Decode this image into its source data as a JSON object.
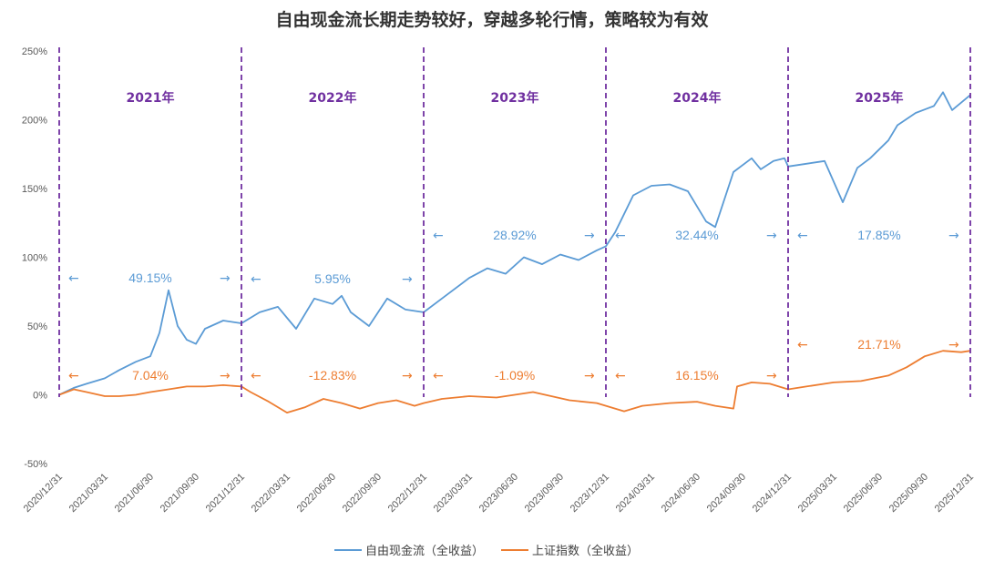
{
  "chart_data": {
    "type": "line",
    "title": "自由现金流长期走势较好，穿越多轮行情，策略较为有效",
    "y_ticks": [
      "250%",
      "200%",
      "150%",
      "100%",
      "50%",
      "0%",
      "-50%"
    ],
    "ylim": [
      -50,
      250
    ],
    "x_ticks": [
      "2020/12/31",
      "2021/03/31",
      "2021/06/30",
      "2021/09/30",
      "2021/12/31",
      "2022/03/31",
      "2022/06/30",
      "2022/09/30",
      "2022/12/31",
      "2023/03/31",
      "2023/06/30",
      "2023/09/30",
      "2023/12/31",
      "2024/03/31",
      "2024/06/30",
      "2024/09/30",
      "2024/12/31",
      "2025/03/31",
      "2025/06/30",
      "2025/09/30",
      "2025/12/31"
    ],
    "year_labels": [
      "2021年",
      "2022年",
      "2023年",
      "2024年",
      "2025年"
    ],
    "dividers": [
      "2020/12/31",
      "2021/12/31",
      "2022/12/31",
      "2023/12/31",
      "2024/12/31",
      "2025/12/31"
    ],
    "annual_returns": {
      "fcf": [
        "49.15%",
        "5.95%",
        "28.92%",
        "32.44%",
        "17.85%"
      ],
      "sse": [
        "7.04%",
        "-12.83%",
        "-1.09%",
        "16.15%",
        "21.71%"
      ]
    },
    "arrows": {
      "left": "←",
      "right": "→"
    },
    "legend_position": "bottom",
    "series": [
      {
        "name": "自由现金流（全收益）",
        "color": "#5b9bd5",
        "x": [
          0,
          0.08,
          0.15,
          0.25,
          0.33,
          0.42,
          0.5,
          0.55,
          0.6,
          0.65,
          0.7,
          0.75,
          0.8,
          0.9,
          1.0,
          1.1,
          1.2,
          1.3,
          1.4,
          1.5,
          1.55,
          1.6,
          1.7,
          1.75,
          1.8,
          1.9,
          2.0,
          2.1,
          2.25,
          2.35,
          2.45,
          2.55,
          2.65,
          2.75,
          2.85,
          2.95,
          3.0,
          3.05,
          3.08,
          3.15,
          3.25,
          3.35,
          3.45,
          3.55,
          3.6,
          3.7,
          3.8,
          3.85,
          3.92,
          3.98,
          4.0,
          4.1,
          4.2,
          4.3,
          4.38,
          4.45,
          4.55,
          4.6,
          4.7,
          4.8,
          4.85,
          4.9,
          5.0
        ],
        "y": [
          0,
          5,
          8,
          12,
          18,
          24,
          28,
          45,
          76,
          50,
          40,
          37,
          48,
          54,
          52,
          60,
          64,
          48,
          70,
          66,
          72,
          60,
          50,
          60,
          70,
          62,
          60,
          70,
          85,
          92,
          88,
          100,
          95,
          102,
          98,
          105,
          108,
          118,
          126,
          145,
          152,
          153,
          148,
          126,
          122,
          162,
          172,
          164,
          170,
          172,
          166,
          168,
          170,
          140,
          165,
          172,
          185,
          196,
          205,
          210,
          220,
          207,
          218
        ]
      },
      {
        "name": "上证指数（全收益）",
        "color": "#ed7d31",
        "x": [
          0,
          0.08,
          0.15,
          0.25,
          0.33,
          0.42,
          0.5,
          0.6,
          0.7,
          0.8,
          0.9,
          1.0,
          1.05,
          1.15,
          1.25,
          1.35,
          1.45,
          1.55,
          1.65,
          1.75,
          1.85,
          1.95,
          2.0,
          2.1,
          2.25,
          2.4,
          2.5,
          2.6,
          2.7,
          2.8,
          2.95,
          3.0,
          3.1,
          3.2,
          3.35,
          3.5,
          3.6,
          3.7,
          3.72,
          3.8,
          3.9,
          4.0,
          4.1,
          4.25,
          4.4,
          4.55,
          4.65,
          4.75,
          4.85,
          4.95,
          5.0
        ],
        "y": [
          0,
          4,
          2,
          -1,
          -1,
          0,
          2,
          4,
          6,
          6,
          7,
          6,
          2,
          -5,
          -13,
          -9,
          -3,
          -6,
          -10,
          -6,
          -4,
          -8,
          -6,
          -3,
          -1,
          -2,
          0,
          2,
          -1,
          -4,
          -6,
          -8,
          -12,
          -8,
          -6,
          -5,
          -8,
          -10,
          6,
          9,
          8,
          4,
          6,
          9,
          10,
          14,
          20,
          28,
          32,
          31,
          32
        ]
      }
    ]
  }
}
